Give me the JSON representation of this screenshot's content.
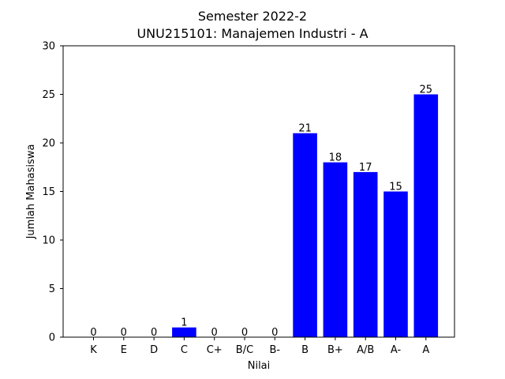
{
  "chart_data": {
    "type": "bar",
    "title": "Semester 2022-2",
    "subtitle": "UNU215101: Manajemen Industri - A",
    "xlabel": "Nilai",
    "ylabel": "Jumlah Mahasiswa",
    "categories": [
      "K",
      "E",
      "D",
      "C",
      "C+",
      "B/C",
      "B-",
      "B",
      "B+",
      "A/B",
      "A-",
      "A"
    ],
    "values": [
      0,
      0,
      0,
      1,
      0,
      0,
      0,
      21,
      18,
      17,
      15,
      25
    ],
    "ylim": [
      0,
      30
    ],
    "yticks": [
      0,
      5,
      10,
      15,
      20,
      25,
      30
    ],
    "bar_color": "#0000ff",
    "grid": false,
    "data_labels": true
  }
}
